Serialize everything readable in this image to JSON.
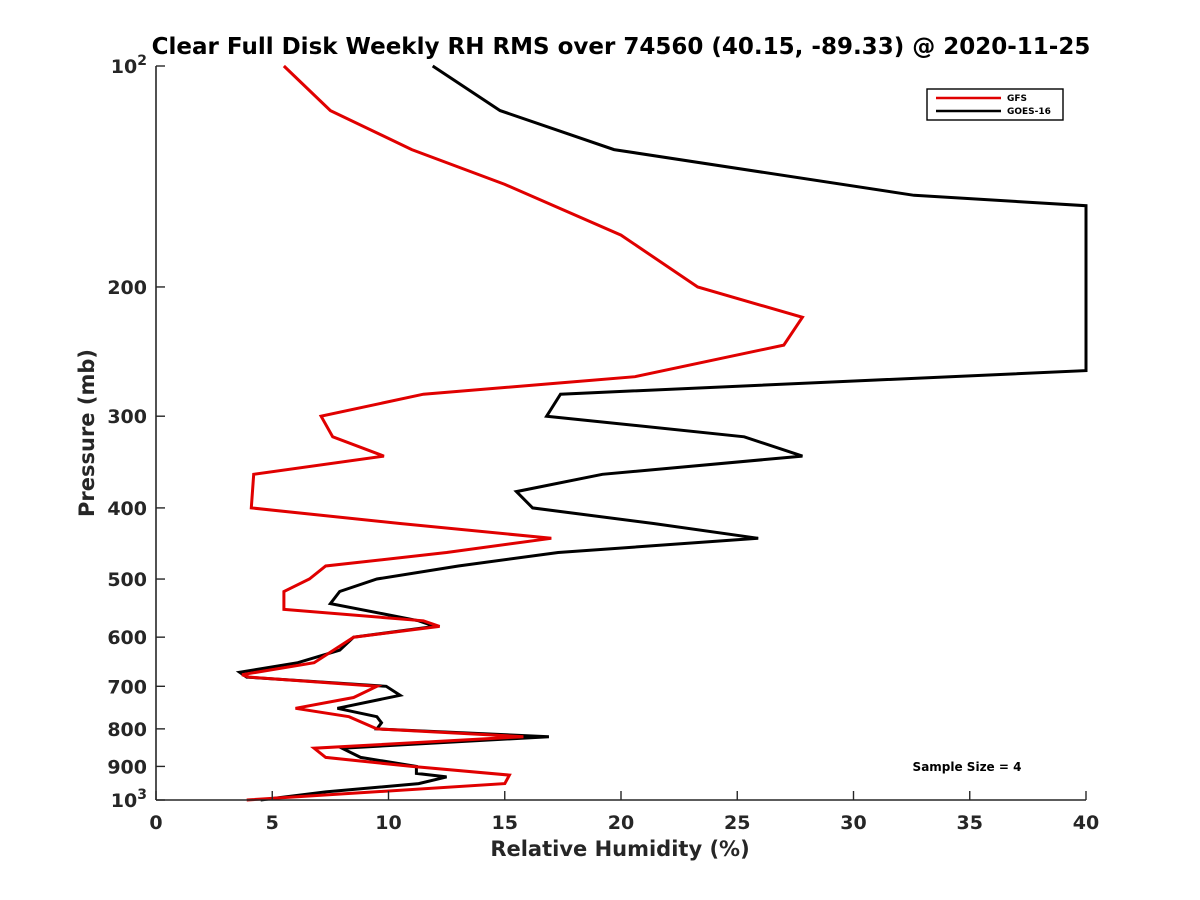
{
  "chart_data": {
    "type": "line",
    "title": "Clear Full Disk Weekly RH RMS over 74560 (40.15, -89.33) @ 2020-11-25",
    "xlabel": "Relative Humidity (%)",
    "ylabel": "Pressure (mb)",
    "xlim": [
      0,
      40
    ],
    "ylim": [
      100,
      1000
    ],
    "yscale": "log",
    "y_reversed": true,
    "grid": false,
    "legend_position": "top-right",
    "x_ticks": [
      "0",
      "5",
      "10",
      "15",
      "20",
      "25",
      "30",
      "35",
      "40"
    ],
    "y_ticks": [
      {
        "value": 100,
        "base": "10",
        "exp": "2"
      },
      {
        "value": 200,
        "label": "200"
      },
      {
        "value": 300,
        "label": "300"
      },
      {
        "value": 400,
        "label": "400"
      },
      {
        "value": 500,
        "label": "500"
      },
      {
        "value": 600,
        "label": "600"
      },
      {
        "value": 700,
        "label": "700"
      },
      {
        "value": 800,
        "label": "800"
      },
      {
        "value": 900,
        "label": "900"
      },
      {
        "value": 1000,
        "base": "10",
        "exp": "3"
      }
    ],
    "annotation": "Sample Size = 4",
    "series": [
      {
        "name": "GFS",
        "color": "#e00000",
        "points": [
          [
            5.5,
            100
          ],
          [
            7.5,
            115
          ],
          [
            11.0,
            130
          ],
          [
            15.0,
            145
          ],
          [
            20.0,
            170
          ],
          [
            23.3,
            200
          ],
          [
            27.8,
            220
          ],
          [
            27.0,
            240
          ],
          [
            20.6,
            265
          ],
          [
            11.5,
            280
          ],
          [
            7.1,
            300
          ],
          [
            7.6,
            320
          ],
          [
            9.8,
            340
          ],
          [
            4.2,
            360
          ],
          [
            4.1,
            400
          ],
          [
            10.5,
            420
          ],
          [
            17.0,
            440
          ],
          [
            12.5,
            460
          ],
          [
            7.3,
            480
          ],
          [
            6.6,
            500
          ],
          [
            5.5,
            520
          ],
          [
            5.5,
            550
          ],
          [
            11.5,
            570
          ],
          [
            12.2,
            580
          ],
          [
            8.5,
            600
          ],
          [
            6.8,
            650
          ],
          [
            3.7,
            675
          ],
          [
            4.0,
            680
          ],
          [
            9.5,
            700
          ],
          [
            8.5,
            725
          ],
          [
            6.0,
            750
          ],
          [
            8.3,
            770
          ],
          [
            9.5,
            800
          ],
          [
            15.8,
            820
          ],
          [
            6.8,
            850
          ],
          [
            7.3,
            875
          ],
          [
            11.0,
            900
          ],
          [
            15.2,
            925
          ],
          [
            15.0,
            950
          ],
          [
            3.9,
            1000
          ]
        ]
      },
      {
        "name": "GOES-16",
        "color": "#000000",
        "points": [
          [
            11.9,
            100
          ],
          [
            14.8,
            115
          ],
          [
            19.7,
            130
          ],
          [
            32.6,
            150
          ],
          [
            40.0,
            155
          ],
          [
            40.0,
            260
          ],
          [
            17.4,
            280
          ],
          [
            16.8,
            300
          ],
          [
            25.3,
            320
          ],
          [
            27.8,
            340
          ],
          [
            19.2,
            360
          ],
          [
            15.5,
            380
          ],
          [
            16.2,
            400
          ],
          [
            21.4,
            420
          ],
          [
            25.9,
            440
          ],
          [
            17.3,
            460
          ],
          [
            13.0,
            480
          ],
          [
            9.5,
            500
          ],
          [
            7.9,
            520
          ],
          [
            7.5,
            540
          ],
          [
            11.3,
            570
          ],
          [
            12.0,
            580
          ],
          [
            8.5,
            600
          ],
          [
            7.9,
            625
          ],
          [
            6.1,
            650
          ],
          [
            3.6,
            670
          ],
          [
            3.9,
            680
          ],
          [
            9.9,
            700
          ],
          [
            10.5,
            720
          ],
          [
            7.8,
            750
          ],
          [
            9.5,
            770
          ],
          [
            9.7,
            785
          ],
          [
            9.5,
            800
          ],
          [
            16.9,
            820
          ],
          [
            8.0,
            850
          ],
          [
            8.8,
            875
          ],
          [
            11.2,
            900
          ],
          [
            11.2,
            920
          ],
          [
            12.5,
            930
          ],
          [
            11.3,
            950
          ],
          [
            7.3,
            975
          ],
          [
            4.5,
            1000
          ]
        ]
      }
    ]
  }
}
